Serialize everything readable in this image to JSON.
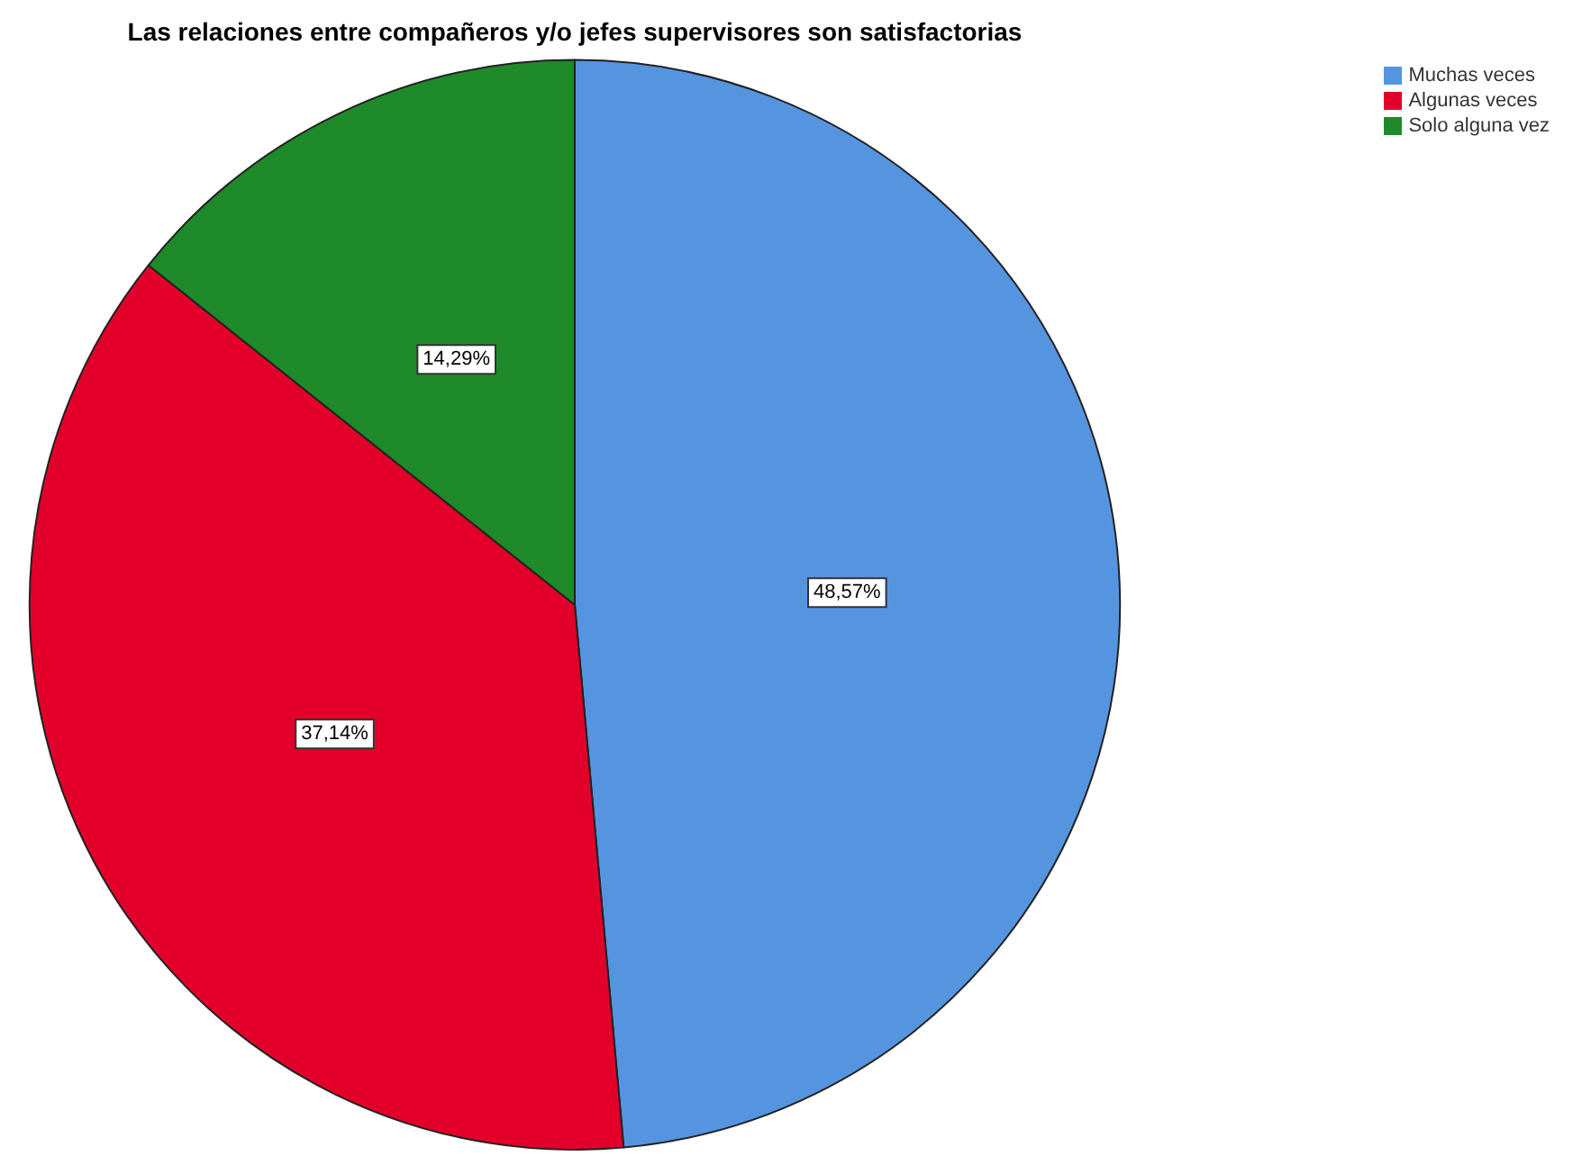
{
  "chart_data": {
    "type": "pie",
    "title": "Las relaciones entre compañeros y/o jefes supervisores son satisfactorias",
    "categories": [
      "Muchas veces",
      "Algunas veces",
      "Solo alguna vez"
    ],
    "values": [
      48.57,
      37.14,
      14.29
    ],
    "value_labels": [
      "48,57%",
      "37,14%",
      "14,29%"
    ],
    "colors": [
      "#5595e0",
      "#e2002a",
      "#1e8a2a"
    ],
    "legend": "top right"
  }
}
